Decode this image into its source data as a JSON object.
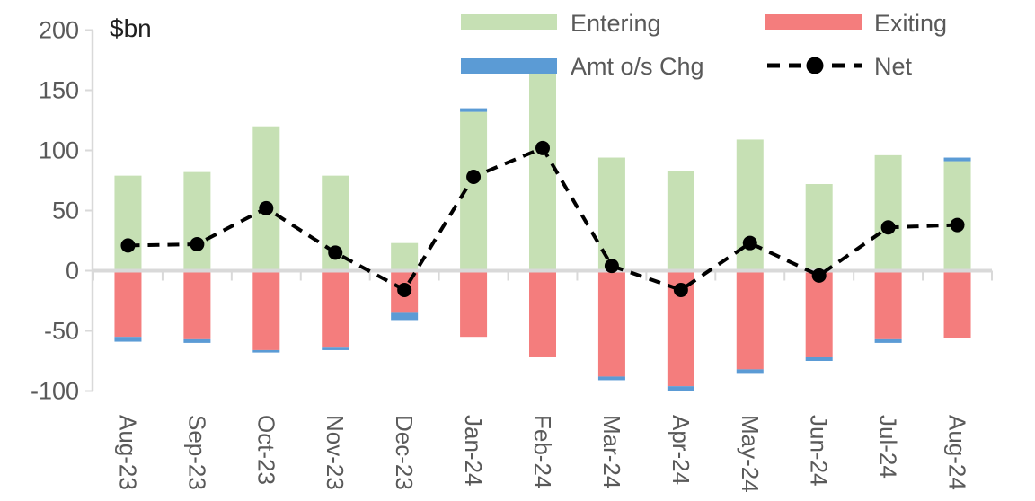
{
  "unit_label": "$bn",
  "legend": {
    "entering": "Entering",
    "exiting": "Exiting",
    "amt_os_chg": "Amt o/s Chg",
    "net": "Net"
  },
  "colors": {
    "entering": "#c6e0b4",
    "exiting": "#f47d7d",
    "amt_os_chg": "#5b9bd5",
    "net": "#000000",
    "axis": "#d9d9d9",
    "text": "#595959"
  },
  "chart_data": {
    "type": "bar",
    "subtype": "stacked-bars-with-net-line",
    "title": "",
    "ylabel": "$bn",
    "xlabel": "",
    "ylim": [
      -100,
      200
    ],
    "ytick_step": 50,
    "grid": false,
    "legend_position": "top",
    "categories": [
      "Aug-23",
      "Sep-23",
      "Oct-23",
      "Nov-23",
      "Dec-23",
      "Jan-24",
      "Feb-24",
      "Mar-24",
      "Apr-24",
      "May-24",
      "Jun-24",
      "Jul-24",
      "Aug-24"
    ],
    "series": [
      {
        "name": "Entering",
        "type": "bar",
        "color_key": "entering",
        "values": [
          79,
          82,
          120,
          79,
          23,
          132,
          174,
          94,
          83,
          109,
          72,
          96,
          91
        ]
      },
      {
        "name": "Exiting",
        "type": "bar",
        "color_key": "exiting",
        "values": [
          -55,
          -57,
          -66,
          -64,
          -35,
          -55,
          -72,
          -88,
          -96,
          -82,
          -72,
          -57,
          -56
        ]
      },
      {
        "name": "Amt o/s Chg",
        "type": "bar",
        "color_key": "amt_os_chg",
        "values": [
          -4,
          -3,
          -2,
          -2,
          -6,
          3,
          0,
          -3,
          -4,
          -3,
          -3,
          -3,
          3
        ]
      },
      {
        "name": "Net",
        "type": "line",
        "color_key": "net",
        "values": [
          21,
          22,
          52,
          15,
          -16,
          78,
          102,
          4,
          -16,
          23,
          -4,
          36,
          38
        ]
      }
    ]
  }
}
